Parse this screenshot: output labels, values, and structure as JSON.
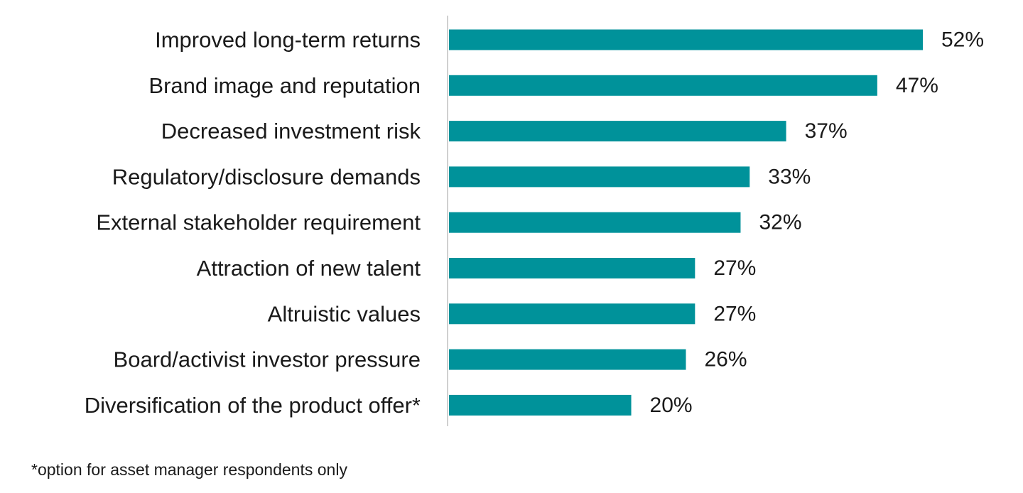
{
  "chart_data": {
    "type": "bar",
    "orientation": "horizontal",
    "categories": [
      "Improved long-term returns",
      "Brand image and reputation",
      "Decreased investment risk",
      "Regulatory/disclosure demands",
      "External stakeholder requirement",
      "Attraction of new talent",
      "Altruistic values",
      "Board/activist investor pressure",
      "Diversification of the product offer*"
    ],
    "values": [
      52,
      47,
      37,
      33,
      32,
      27,
      27,
      26,
      20
    ],
    "value_labels": [
      "52%",
      "47%",
      "37%",
      "33%",
      "32%",
      "27%",
      "27%",
      "26%",
      "20%"
    ],
    "unit": "%",
    "xlim": [
      0,
      52
    ],
    "bar_color": "#00929a",
    "axis_color": "#d0d0d0",
    "grid": false,
    "legend": "none"
  },
  "footnote": "*option for asset manager respondents only"
}
